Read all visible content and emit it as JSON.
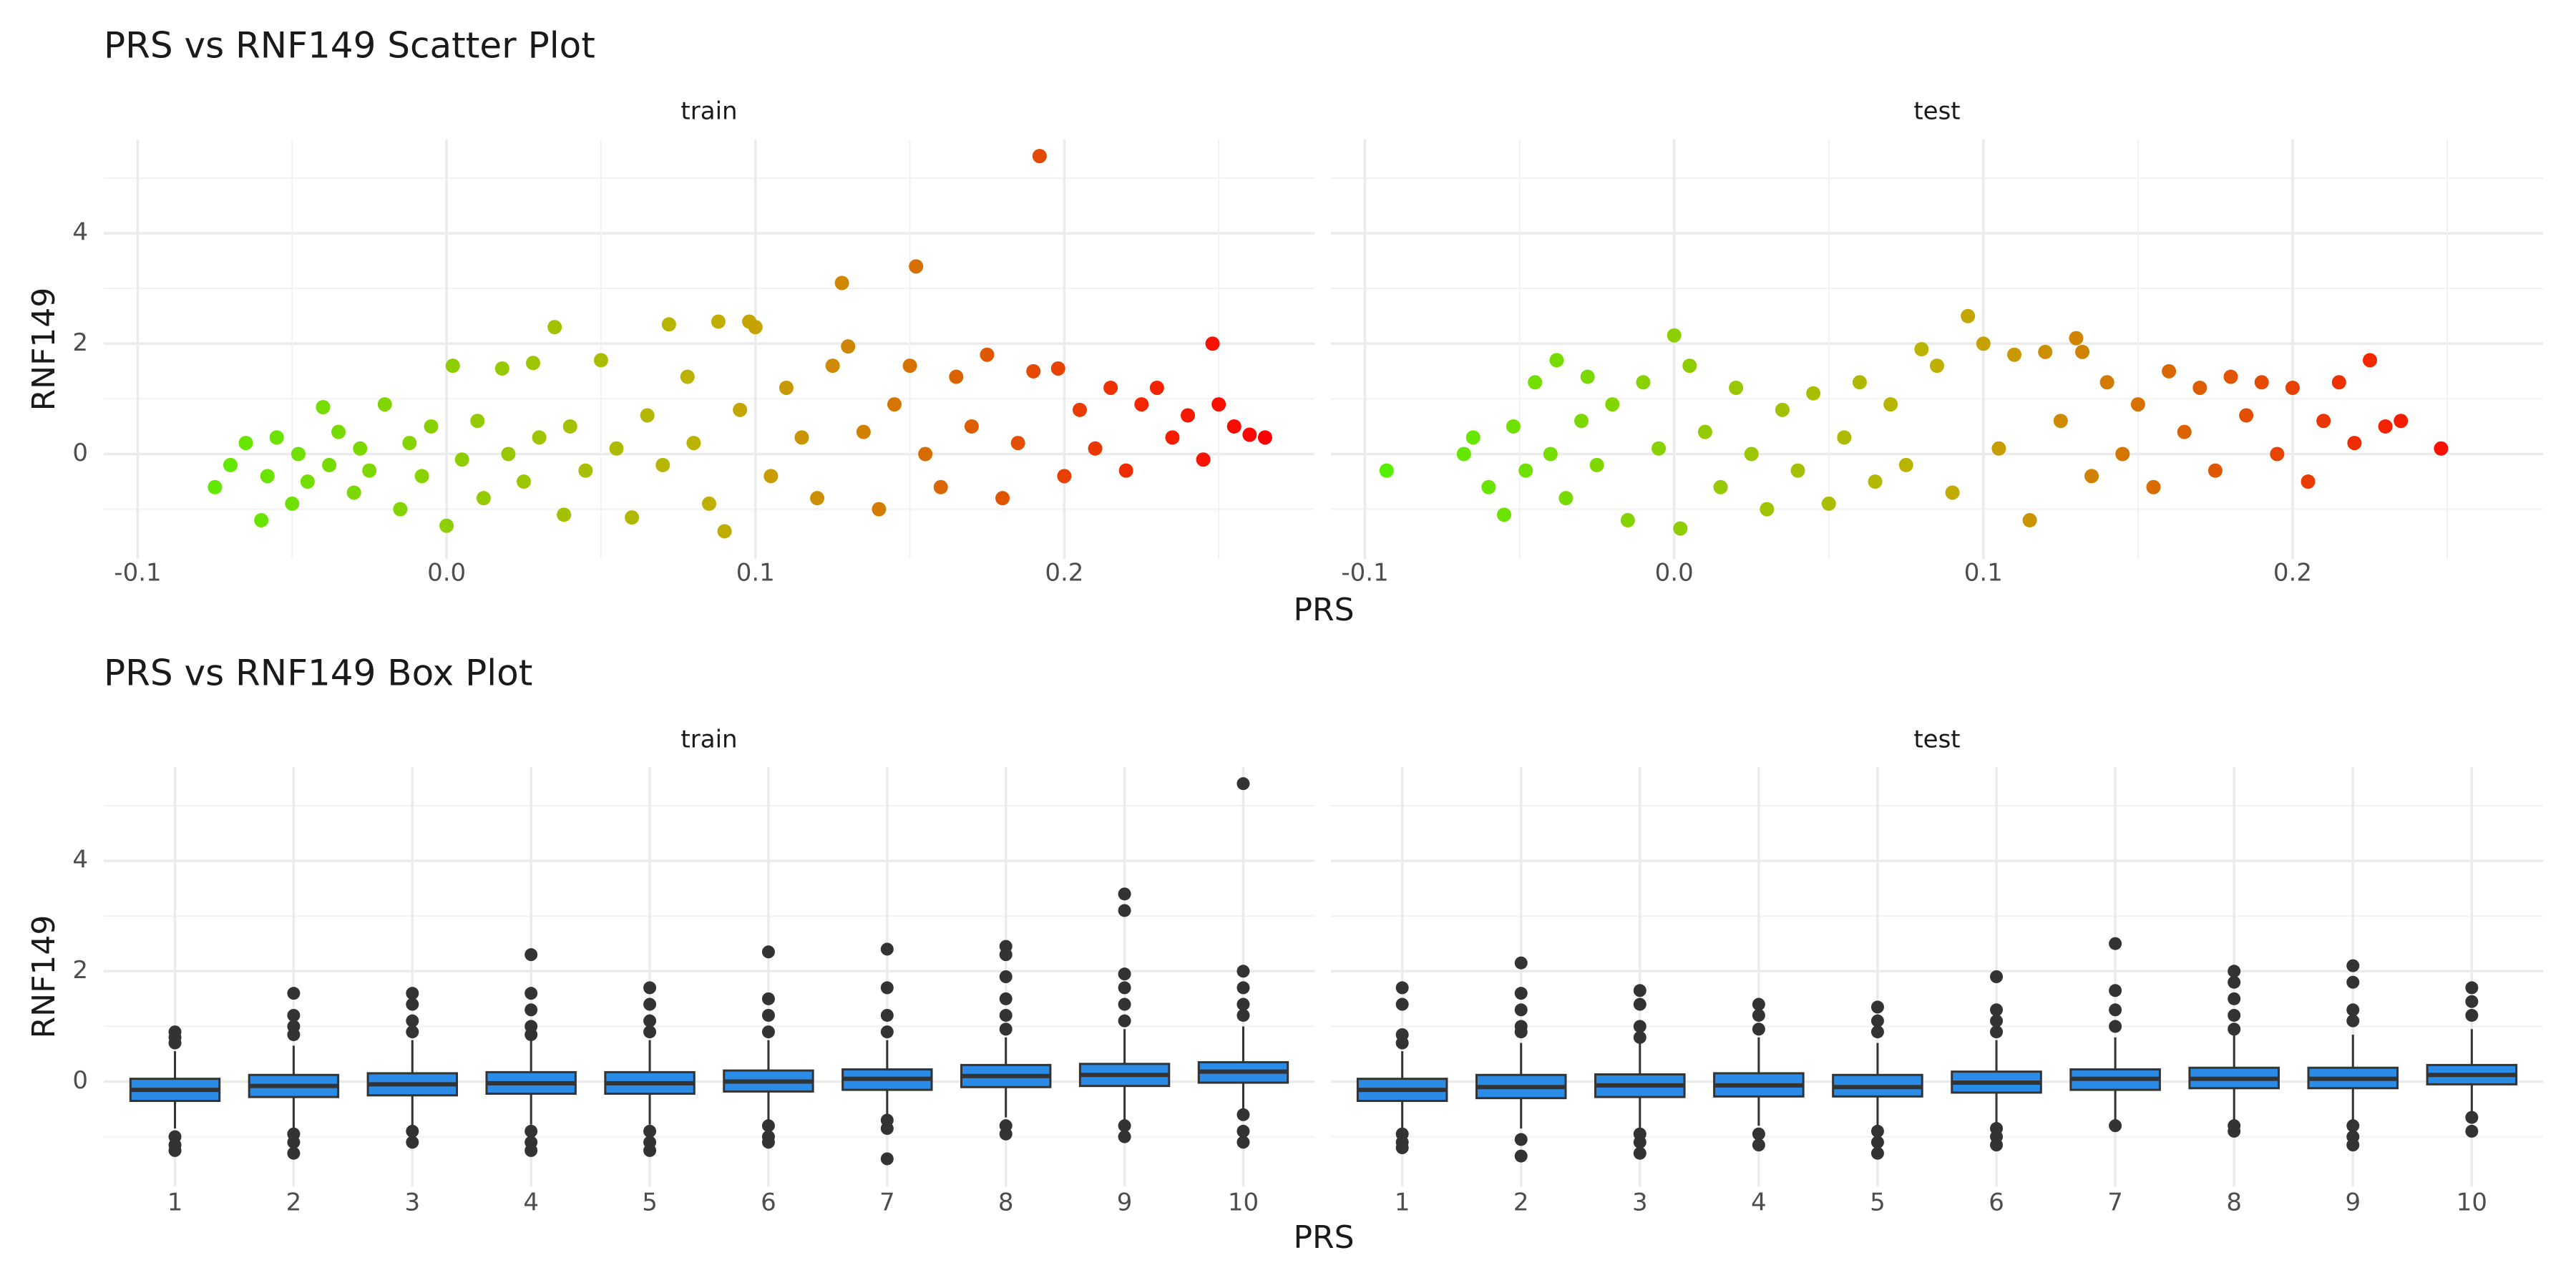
{
  "chart_data": [
    {
      "type": "scatter",
      "title": "PRS vs RNF149 Scatter Plot",
      "xlabel": "PRS",
      "ylabel": "RNF149",
      "xlim": [
        -0.111,
        0.281
      ],
      "ylim": [
        -1.9,
        5.7
      ],
      "xticks": [
        -0.1,
        {
          "value": 0,
          "label": "0.0"
        },
        0.1,
        0.2
      ],
      "xminor": [
        -0.05,
        0.05,
        0.15,
        0.25
      ],
      "yticks": [
        0,
        2,
        4
      ],
      "yminor": [
        -1,
        1,
        3,
        5
      ],
      "grid": true,
      "colors": [
        "#55f000",
        "#c0b000",
        "#ff0000"
      ],
      "facets": [
        {
          "name": "train",
          "x": [
            -0.075,
            -0.07,
            -0.065,
            -0.06,
            -0.058,
            -0.055,
            -0.05,
            -0.048,
            -0.045,
            -0.04,
            -0.038,
            -0.035,
            -0.03,
            -0.028,
            -0.025,
            -0.02,
            -0.015,
            -0.012,
            -0.008,
            -0.005,
            0.0,
            0.002,
            0.005,
            0.01,
            0.012,
            0.018,
            0.02,
            0.025,
            0.028,
            0.03,
            0.035,
            0.038,
            0.04,
            0.045,
            0.05,
            0.055,
            0.06,
            0.065,
            0.07,
            0.072,
            0.078,
            0.08,
            0.085,
            0.088,
            0.09,
            0.095,
            0.098,
            0.1,
            0.105,
            0.11,
            0.115,
            0.12,
            0.125,
            0.128,
            0.13,
            0.135,
            0.14,
            0.145,
            0.15,
            0.152,
            0.155,
            0.16,
            0.165,
            0.17,
            0.175,
            0.18,
            0.185,
            0.19,
            0.192,
            0.198,
            0.2,
            0.205,
            0.21,
            0.215,
            0.22,
            0.225,
            0.23,
            0.235,
            0.24,
            0.245,
            0.248,
            0.25,
            0.255,
            0.26,
            0.265
          ],
          "y": [
            -0.6,
            -0.2,
            0.2,
            -1.2,
            -0.4,
            0.3,
            -0.9,
            0.0,
            -0.5,
            0.85,
            -0.2,
            0.4,
            -0.7,
            0.1,
            -0.3,
            0.9,
            -1.0,
            0.2,
            -0.4,
            0.5,
            -1.3,
            1.6,
            -0.1,
            0.6,
            -0.8,
            1.55,
            0.0,
            -0.5,
            1.65,
            0.3,
            2.3,
            -1.1,
            0.5,
            -0.3,
            1.7,
            0.1,
            -1.15,
            0.7,
            -0.2,
            2.35,
            1.4,
            0.2,
            -0.9,
            2.4,
            -1.4,
            0.8,
            2.4,
            2.3,
            -0.4,
            1.2,
            0.3,
            -0.8,
            1.6,
            3.1,
            1.95,
            0.4,
            -1.0,
            0.9,
            1.6,
            3.4,
            0.0,
            -0.6,
            1.4,
            0.5,
            1.8,
            -0.8,
            0.2,
            1.5,
            5.4,
            1.55,
            -0.4,
            0.8,
            0.1,
            1.2,
            -0.3,
            0.9,
            1.2,
            0.3,
            0.7,
            -0.1,
            2.0,
            0.9,
            0.5,
            0.35,
            0.3
          ]
        },
        {
          "name": "test",
          "x": [
            -0.093,
            -0.068,
            -0.065,
            -0.06,
            -0.055,
            -0.052,
            -0.048,
            -0.045,
            -0.04,
            -0.038,
            -0.035,
            -0.03,
            -0.028,
            -0.025,
            -0.02,
            -0.015,
            -0.01,
            -0.005,
            0.0,
            0.002,
            0.005,
            0.01,
            0.015,
            0.02,
            0.025,
            0.03,
            0.035,
            0.04,
            0.045,
            0.05,
            0.055,
            0.06,
            0.065,
            0.07,
            0.075,
            0.08,
            0.085,
            0.09,
            0.095,
            0.1,
            0.105,
            0.11,
            0.115,
            0.12,
            0.125,
            0.13,
            0.132,
            0.135,
            0.14,
            0.145,
            0.15,
            0.155,
            0.16,
            0.165,
            0.17,
            0.175,
            0.18,
            0.185,
            0.19,
            0.195,
            0.2,
            0.205,
            0.21,
            0.215,
            0.22,
            0.225,
            0.23,
            0.235,
            0.248
          ],
          "y": [
            -0.3,
            0.0,
            0.3,
            -0.6,
            -1.1,
            0.5,
            -0.3,
            1.3,
            0.0,
            1.7,
            -0.8,
            0.6,
            1.4,
            -0.2,
            0.9,
            -1.2,
            1.3,
            0.1,
            2.15,
            -1.35,
            1.6,
            0.4,
            -0.6,
            1.2,
            0.0,
            -1.0,
            0.8,
            -0.3,
            1.1,
            -0.9,
            0.3,
            1.3,
            -0.5,
            0.9,
            -0.2,
            1.9,
            1.6,
            -0.7,
            2.5,
            2.0,
            0.1,
            1.8,
            -1.2,
            1.85,
            0.6,
            2.1,
            1.85,
            -0.4,
            1.3,
            0.0,
            0.9,
            -0.6,
            1.5,
            0.4,
            1.2,
            -0.3,
            1.4,
            0.7,
            1.3,
            0.0,
            1.2,
            -0.5,
            0.6,
            1.3,
            0.2,
            1.7,
            0.5,
            0.6,
            0.1
          ]
        }
      ]
    },
    {
      "type": "box",
      "title": "PRS vs RNF149 Box Plot",
      "xlabel": "PRS",
      "ylabel": "RNF149",
      "categories": [
        "1",
        "2",
        "3",
        "4",
        "5",
        "6",
        "7",
        "8",
        "9",
        "10"
      ],
      "ylim": [
        -1.9,
        5.7
      ],
      "yticks": [
        0,
        2,
        4
      ],
      "yminor": [
        -1,
        1,
        3,
        5
      ],
      "grid": true,
      "color": "#2b8ce8",
      "facets": [
        {
          "name": "train",
          "boxes": [
            {
              "q1": -0.35,
              "median": -0.15,
              "q3": 0.05,
              "whisker_low": -0.85,
              "whisker_high": 0.55,
              "outliers": [
                0.9,
                0.8,
                0.7,
                -1.0,
                -1.15,
                -1.25
              ]
            },
            {
              "q1": -0.28,
              "median": -0.08,
              "q3": 0.12,
              "whisker_low": -0.85,
              "whisker_high": 0.65,
              "outliers": [
                1.6,
                1.2,
                1.0,
                0.85,
                -0.95,
                -1.1,
                -1.3
              ]
            },
            {
              "q1": -0.25,
              "median": -0.05,
              "q3": 0.15,
              "whisker_low": -0.8,
              "whisker_high": 0.75,
              "outliers": [
                1.6,
                1.4,
                1.1,
                0.9,
                -0.9,
                -1.1
              ]
            },
            {
              "q1": -0.22,
              "median": -0.03,
              "q3": 0.17,
              "whisker_low": -0.78,
              "whisker_high": 0.75,
              "outliers": [
                2.3,
                1.6,
                1.3,
                1.0,
                0.85,
                -0.9,
                -1.1,
                -1.25
              ]
            },
            {
              "q1": -0.22,
              "median": -0.03,
              "q3": 0.17,
              "whisker_low": -0.78,
              "whisker_high": 0.75,
              "outliers": [
                1.7,
                1.4,
                1.1,
                0.9,
                -0.9,
                -1.1,
                -1.25
              ]
            },
            {
              "q1": -0.18,
              "median": 0.0,
              "q3": 0.2,
              "whisker_low": -0.7,
              "whisker_high": 0.75,
              "outliers": [
                2.35,
                1.5,
                1.2,
                0.9,
                -0.8,
                -1.0,
                -1.1
              ]
            },
            {
              "q1": -0.15,
              "median": 0.05,
              "q3": 0.22,
              "whisker_low": -0.65,
              "whisker_high": 0.75,
              "outliers": [
                2.4,
                1.7,
                1.2,
                0.9,
                -0.7,
                -0.85,
                -1.4
              ]
            },
            {
              "q1": -0.1,
              "median": 0.1,
              "q3": 0.3,
              "whisker_low": -0.65,
              "whisker_high": 0.8,
              "outliers": [
                2.45,
                2.3,
                1.9,
                1.5,
                1.2,
                0.95,
                -0.8,
                -0.95
              ]
            },
            {
              "q1": -0.08,
              "median": 0.12,
              "q3": 0.32,
              "whisker_low": -0.7,
              "whisker_high": 0.95,
              "outliers": [
                3.4,
                3.1,
                1.95,
                1.7,
                1.4,
                1.1,
                -0.8,
                -1.0
              ]
            },
            {
              "q1": -0.02,
              "median": 0.18,
              "q3": 0.35,
              "whisker_low": -0.5,
              "whisker_high": 1.0,
              "outliers": [
                5.4,
                2.0,
                1.7,
                1.4,
                1.2,
                -0.6,
                -0.9,
                -1.1
              ]
            }
          ]
        },
        {
          "name": "test",
          "boxes": [
            {
              "q1": -0.35,
              "median": -0.15,
              "q3": 0.05,
              "whisker_low": -0.85,
              "whisker_high": 0.55,
              "outliers": [
                1.7,
                1.4,
                0.85,
                0.7,
                -0.95,
                -1.1,
                -1.2
              ]
            },
            {
              "q1": -0.3,
              "median": -0.1,
              "q3": 0.12,
              "whisker_low": -0.85,
              "whisker_high": 0.7,
              "outliers": [
                2.15,
                1.6,
                1.3,
                1.0,
                0.9,
                -1.05,
                -1.35
              ]
            },
            {
              "q1": -0.28,
              "median": -0.07,
              "q3": 0.13,
              "whisker_low": -0.85,
              "whisker_high": 0.75,
              "outliers": [
                1.65,
                1.4,
                1.0,
                0.8,
                -0.95,
                -1.1,
                -1.3
              ]
            },
            {
              "q1": -0.27,
              "median": -0.07,
              "q3": 0.15,
              "whisker_low": -0.8,
              "whisker_high": 0.8,
              "outliers": [
                1.4,
                1.2,
                0.95,
                -0.95,
                -1.15
              ]
            },
            {
              "q1": -0.27,
              "median": -0.1,
              "q3": 0.12,
              "whisker_low": -0.8,
              "whisker_high": 0.7,
              "outliers": [
                1.35,
                1.1,
                0.9,
                -0.9,
                -1.1,
                -1.3
              ]
            },
            {
              "q1": -0.2,
              "median": -0.02,
              "q3": 0.18,
              "whisker_low": -0.75,
              "whisker_high": 0.75,
              "outliers": [
                1.9,
                1.3,
                1.1,
                0.9,
                -0.85,
                -1.0,
                -1.15
              ]
            },
            {
              "q1": -0.15,
              "median": 0.05,
              "q3": 0.22,
              "whisker_low": -0.7,
              "whisker_high": 0.8,
              "outliers": [
                2.5,
                1.65,
                1.3,
                1.0,
                -0.8
              ]
            },
            {
              "q1": -0.12,
              "median": 0.05,
              "q3": 0.25,
              "whisker_low": -0.7,
              "whisker_high": 0.85,
              "outliers": [
                2.0,
                1.8,
                1.5,
                1.2,
                0.95,
                -0.8,
                -0.9
              ]
            },
            {
              "q1": -0.12,
              "median": 0.05,
              "q3": 0.25,
              "whisker_low": -0.7,
              "whisker_high": 0.85,
              "outliers": [
                2.1,
                1.8,
                1.3,
                1.1,
                -0.8,
                -1.0,
                -1.15
              ]
            },
            {
              "q1": -0.05,
              "median": 0.12,
              "q3": 0.3,
              "whisker_low": -0.55,
              "whisker_high": 0.95,
              "outliers": [
                1.7,
                1.45,
                1.2,
                -0.65,
                -0.9
              ]
            }
          ]
        }
      ]
    }
  ]
}
